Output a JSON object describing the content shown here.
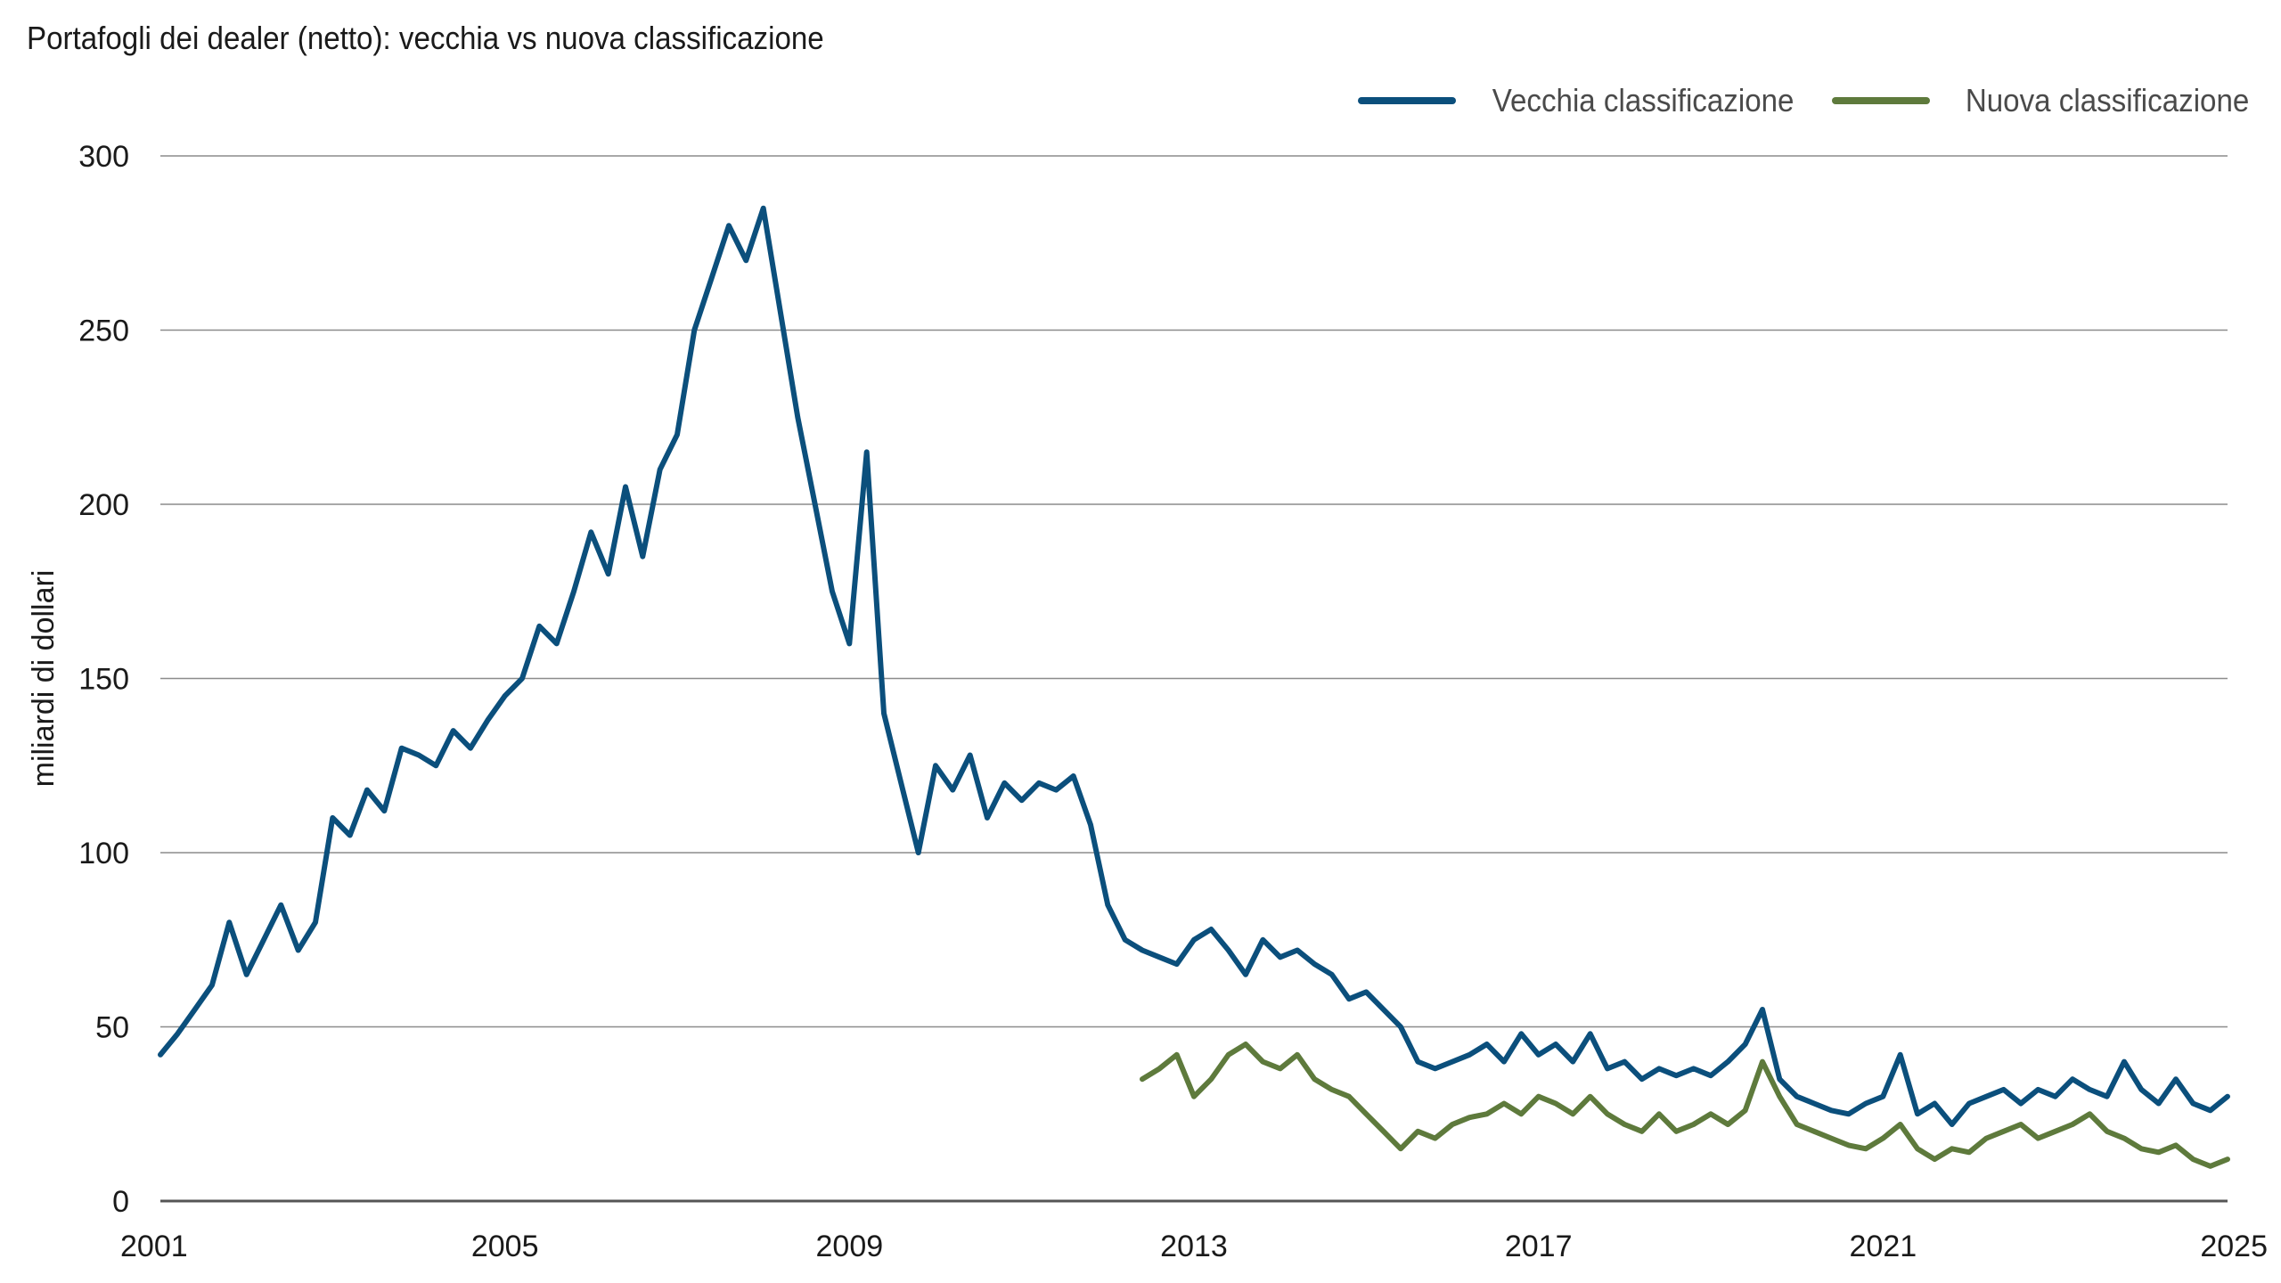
{
  "chart_data": {
    "type": "line",
    "title": "Portafogli dei dealer (netto): vecchia vs nuova classificazione",
    "ylabel": "miliardi di dollari",
    "xlabel": "",
    "xlim": [
      2001,
      2025
    ],
    "ylim": [
      0,
      300
    ],
    "x_ticks": [
      "2001",
      "2005",
      "2009",
      "2013",
      "2017",
      "2021",
      "2025"
    ],
    "y_ticks": [
      "0",
      "50",
      "100",
      "150",
      "200",
      "250",
      "300"
    ],
    "grid": "horizontal",
    "legend_position": "top-right",
    "series": [
      {
        "name": "Vecchia classificazione",
        "color": "#0b4f7c",
        "x": [
          2001.0,
          2001.2,
          2001.4,
          2001.6,
          2001.8,
          2002.0,
          2002.2,
          2002.4,
          2002.6,
          2002.8,
          2003.0,
          2003.2,
          2003.4,
          2003.6,
          2003.8,
          2004.0,
          2004.2,
          2004.4,
          2004.6,
          2004.8,
          2005.0,
          2005.2,
          2005.4,
          2005.6,
          2005.8,
          2006.0,
          2006.2,
          2006.4,
          2006.6,
          2006.8,
          2007.0,
          2007.2,
          2007.4,
          2007.6,
          2007.8,
          2008.0,
          2008.2,
          2008.4,
          2008.6,
          2008.8,
          2009.0,
          2009.2,
          2009.4,
          2009.6,
          2009.8,
          2010.0,
          2010.2,
          2010.4,
          2010.6,
          2010.8,
          2011.0,
          2011.2,
          2011.4,
          2011.6,
          2011.8,
          2012.0,
          2012.2,
          2012.4,
          2012.6,
          2012.8,
          2013.0,
          2013.2,
          2013.4,
          2013.6,
          2013.8,
          2014.0,
          2014.2,
          2014.4,
          2014.6,
          2014.8,
          2015.0,
          2015.2,
          2015.4,
          2015.6,
          2015.8,
          2016.0,
          2016.2,
          2016.4,
          2016.6,
          2016.8,
          2017.0,
          2017.2,
          2017.4,
          2017.6,
          2017.8,
          2018.0,
          2018.2,
          2018.4,
          2018.6,
          2018.8,
          2019.0,
          2019.2,
          2019.4,
          2019.6,
          2019.8,
          2020.0,
          2020.2,
          2020.4,
          2020.6,
          2020.8,
          2021.0,
          2021.2,
          2021.4,
          2021.6,
          2021.8,
          2022.0,
          2022.2,
          2022.4,
          2022.6,
          2022.8,
          2023.0,
          2023.2,
          2023.4,
          2023.6,
          2023.8,
          2024.0,
          2024.2,
          2024.4,
          2024.6,
          2024.8,
          2025.0
        ],
        "values": [
          42,
          48,
          55,
          62,
          80,
          65,
          75,
          85,
          72,
          80,
          110,
          105,
          118,
          112,
          130,
          128,
          125,
          135,
          130,
          138,
          145,
          150,
          165,
          160,
          175,
          192,
          180,
          205,
          185,
          210,
          220,
          250,
          265,
          280,
          270,
          285,
          255,
          225,
          200,
          175,
          160,
          215,
          140,
          120,
          100,
          125,
          118,
          128,
          110,
          120,
          115,
          120,
          118,
          122,
          108,
          85,
          75,
          72,
          70,
          68,
          75,
          78,
          72,
          65,
          75,
          70,
          72,
          68,
          65,
          58,
          60,
          55,
          50,
          40,
          38,
          40,
          42,
          45,
          40,
          48,
          42,
          45,
          40,
          48,
          38,
          40,
          35,
          38,
          36,
          38,
          36,
          40,
          45,
          55,
          35,
          30,
          28,
          26,
          25,
          28,
          30,
          42,
          25,
          28,
          22,
          28,
          30,
          32,
          28,
          32,
          30,
          35,
          32,
          30,
          40,
          32,
          28,
          35,
          28,
          26,
          30
        ]
      },
      {
        "name": "Nuova classificazione",
        "color": "#5e7a3c",
        "x": [
          2012.4,
          2012.6,
          2012.8,
          2013.0,
          2013.2,
          2013.4,
          2013.6,
          2013.8,
          2014.0,
          2014.2,
          2014.4,
          2014.6,
          2014.8,
          2015.0,
          2015.2,
          2015.4,
          2015.6,
          2015.8,
          2016.0,
          2016.2,
          2016.4,
          2016.6,
          2016.8,
          2017.0,
          2017.2,
          2017.4,
          2017.6,
          2017.8,
          2018.0,
          2018.2,
          2018.4,
          2018.6,
          2018.8,
          2019.0,
          2019.2,
          2019.4,
          2019.6,
          2019.8,
          2020.0,
          2020.2,
          2020.4,
          2020.6,
          2020.8,
          2021.0,
          2021.2,
          2021.4,
          2021.6,
          2021.8,
          2022.0,
          2022.2,
          2022.4,
          2022.6,
          2022.8,
          2023.0,
          2023.2,
          2023.4,
          2023.6,
          2023.8,
          2024.0,
          2024.2,
          2024.4,
          2024.6,
          2024.8,
          2025.0
        ],
        "values": [
          35,
          38,
          42,
          30,
          35,
          42,
          45,
          40,
          38,
          42,
          35,
          32,
          30,
          25,
          20,
          15,
          20,
          18,
          22,
          24,
          25,
          28,
          25,
          30,
          28,
          25,
          30,
          25,
          22,
          20,
          25,
          20,
          22,
          25,
          22,
          26,
          40,
          30,
          22,
          20,
          18,
          16,
          15,
          18,
          22,
          15,
          12,
          15,
          14,
          18,
          20,
          22,
          18,
          20,
          22,
          25,
          20,
          18,
          15,
          14,
          16,
          12,
          10,
          12
        ]
      }
    ]
  }
}
